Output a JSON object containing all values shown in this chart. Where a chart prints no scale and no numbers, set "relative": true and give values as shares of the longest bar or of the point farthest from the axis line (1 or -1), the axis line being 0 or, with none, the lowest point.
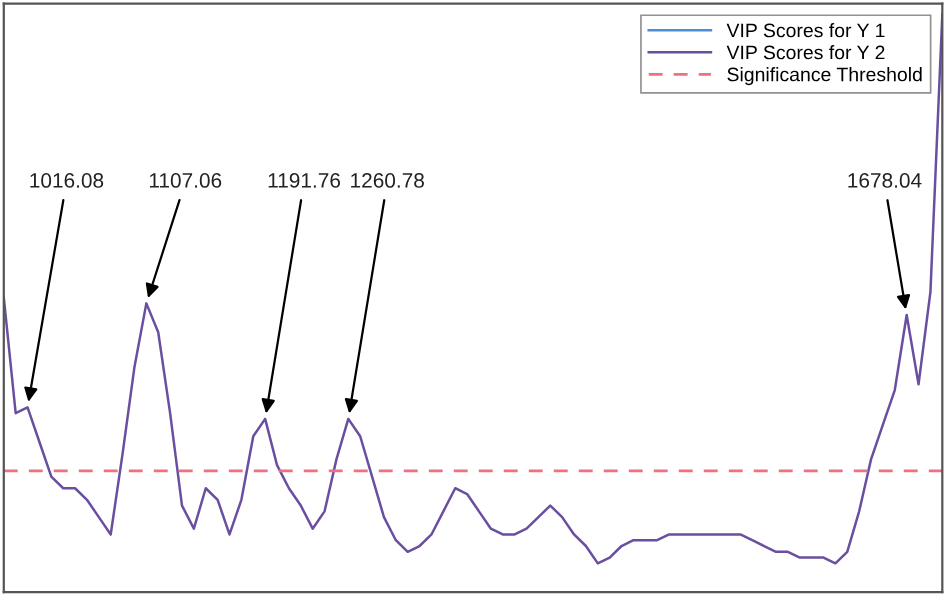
{
  "chart_data": {
    "type": "line",
    "relative": true,
    "legend": "top right",
    "categories": [
      null,
      null,
      null,
      null,
      null,
      null,
      null,
      null,
      null,
      null,
      null,
      null,
      null,
      null,
      null,
      null,
      null,
      null,
      null,
      null,
      null,
      null,
      null,
      null,
      null,
      null,
      null,
      null,
      null,
      null,
      null,
      null,
      null,
      null,
      null,
      null,
      null,
      null,
      null,
      null,
      null,
      null,
      null,
      null,
      null,
      null,
      null,
      null,
      null,
      null,
      null,
      null,
      null,
      null,
      null,
      null,
      null,
      null,
      null,
      null,
      null,
      null,
      null,
      null,
      null,
      null,
      null,
      null,
      null,
      null,
      null,
      null,
      null,
      null,
      null,
      null,
      null,
      null,
      null,
      null
    ],
    "series": [
      {
        "name": "VIP Scores for Y 1",
        "color": "#4a90d9",
        "values": [
          null,
          null,
          null,
          null,
          null,
          null,
          null,
          null,
          null,
          null,
          null,
          null,
          null,
          null,
          null,
          null,
          null,
          null,
          null,
          null,
          null,
          null,
          null,
          null,
          null,
          null,
          null,
          null,
          null,
          null,
          null,
          null,
          null,
          null,
          null,
          null,
          null,
          null,
          null,
          null,
          null,
          null,
          null,
          null,
          null,
          null,
          null,
          null,
          null,
          null,
          null,
          null,
          null,
          null,
          null,
          null,
          null,
          null,
          null,
          null,
          null,
          null,
          null,
          null,
          null,
          null,
          null,
          null,
          null,
          null,
          null,
          null,
          null,
          null,
          null,
          null,
          null,
          null,
          null,
          null
        ]
      },
      {
        "name": "VIP Scores for Y 2",
        "color": "#6a4fa0",
        "values": [
          0.51,
          0.31,
          0.32,
          0.26,
          0.2,
          0.18,
          0.18,
          0.16,
          0.13,
          0.1,
          0.24,
          0.39,
          0.5,
          0.45,
          0.31,
          0.15,
          0.11,
          0.18,
          0.16,
          0.1,
          0.16,
          0.27,
          0.3,
          0.22,
          0.18,
          0.15,
          0.11,
          0.14,
          0.23,
          0.3,
          0.27,
          0.2,
          0.13,
          0.09,
          0.07,
          0.08,
          0.1,
          0.14,
          0.18,
          0.17,
          0.14,
          0.11,
          0.1,
          0.1,
          0.11,
          0.13,
          0.15,
          0.13,
          0.1,
          0.08,
          0.05,
          0.06,
          0.08,
          0.09,
          0.09,
          0.09,
          0.1,
          0.1,
          0.1,
          0.1,
          0.1,
          0.1,
          0.1,
          0.09,
          0.08,
          0.07,
          0.07,
          0.06,
          0.06,
          0.06,
          0.05,
          0.07,
          0.14,
          0.23,
          0.29,
          0.35,
          0.48,
          0.36,
          0.52,
          1
        ]
      }
    ],
    "ref_lines": [
      {
        "axis": "y",
        "value": 0.21,
        "label": "Significance Threshold",
        "color": "#f07080",
        "line_style": "dashed"
      }
    ],
    "annotations": [
      "1016.08",
      "1107.06",
      "1191.76",
      "1260.78",
      "1678.04"
    ]
  }
}
